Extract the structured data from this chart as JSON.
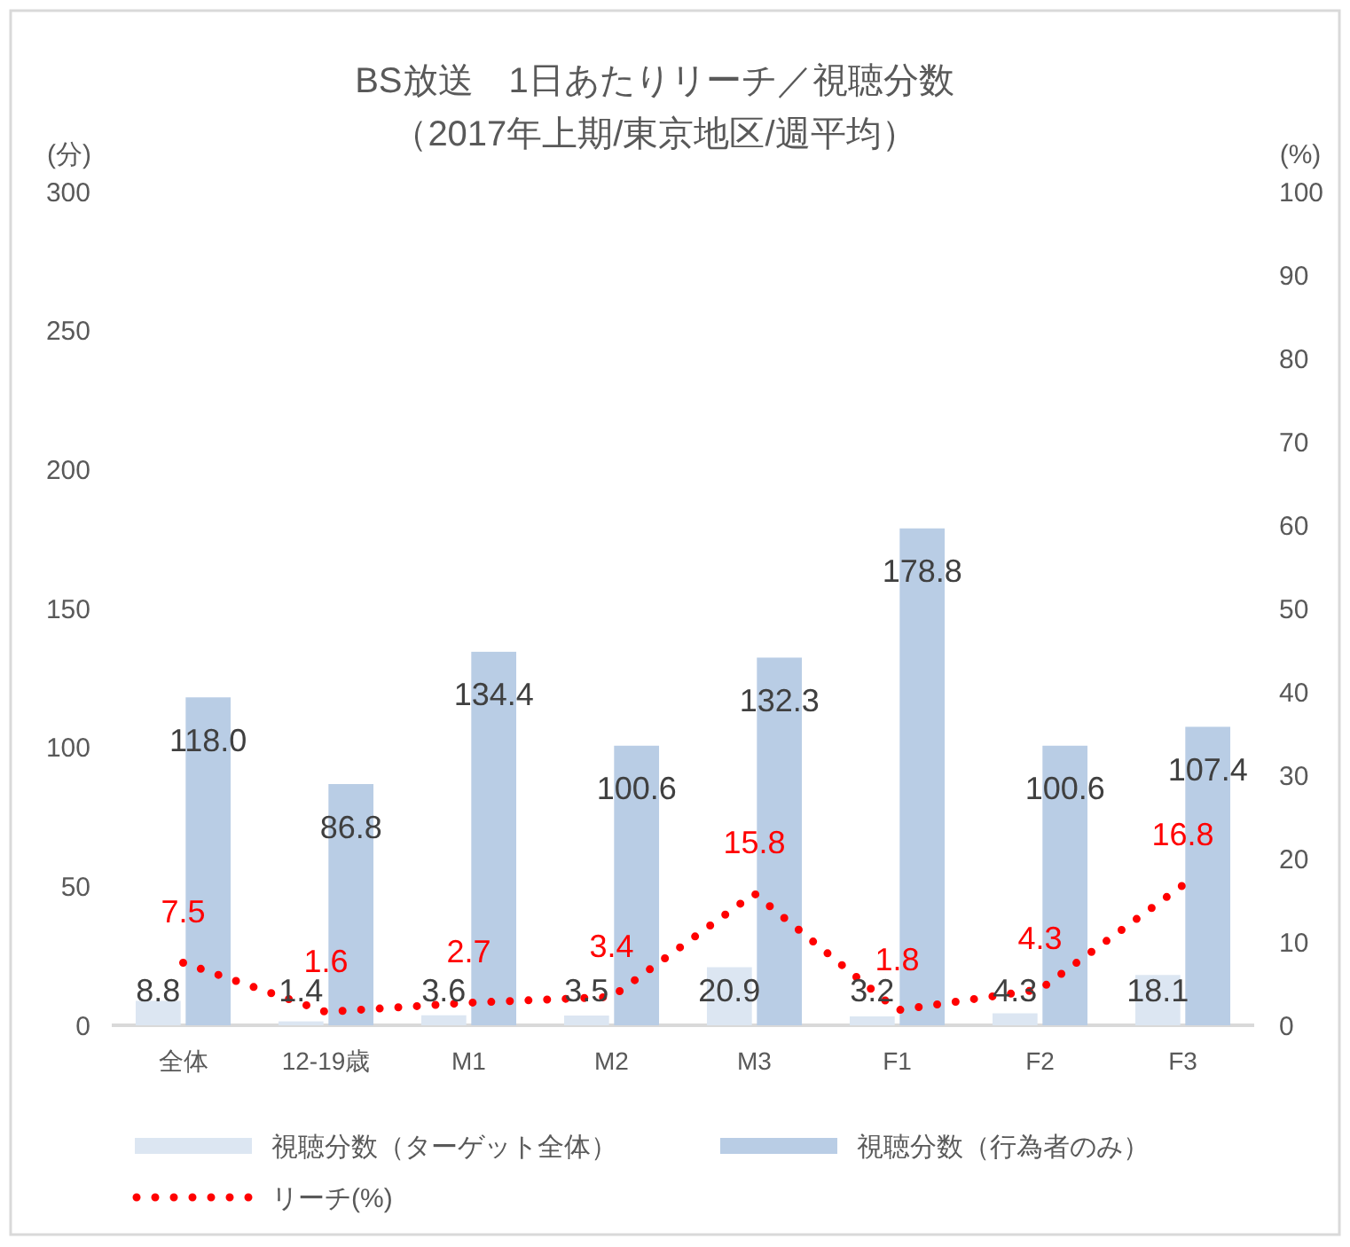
{
  "chart_data": {
    "type": "bar",
    "title": "BS放送　1日あたりリーチ／視聴分数",
    "subtitle": "（2017年上期/東京地区/週平均）",
    "ylabel": "(分)",
    "y2label": "(%)",
    "categories": [
      "全体",
      "12-19歳",
      "M1",
      "M2",
      "M3",
      "F1",
      "F2",
      "F3"
    ],
    "series": [
      {
        "name": "視聴分数（ターゲット全体）",
        "color": "#dce6f2",
        "values": [
          8.8,
          1.4,
          3.6,
          3.5,
          20.9,
          3.2,
          4.3,
          18.1
        ],
        "value_labels": [
          "8.8",
          "1.4",
          "3.6",
          "3.5",
          "20.9",
          "3.2",
          "4.3",
          "18.1"
        ]
      },
      {
        "name": "視聴分数（行為者のみ）",
        "color": "#b9cde5",
        "values": [
          118.0,
          86.8,
          134.4,
          100.6,
          132.3,
          178.8,
          100.6,
          107.4
        ],
        "value_labels": [
          "118.0",
          "86.8",
          "134.4",
          "100.6",
          "132.3",
          "178.8",
          "100.6",
          "107.4"
        ]
      },
      {
        "name": "リーチ(%)",
        "type": "line",
        "axis": "y2",
        "color": "#ff0000",
        "line_style": "dotted",
        "values": [
          7.5,
          1.6,
          2.7,
          3.4,
          15.8,
          1.8,
          4.3,
          16.8
        ],
        "value_labels": [
          "7.5",
          "1.6",
          "2.7",
          "3.4",
          "15.8",
          "1.8",
          "4.3",
          "16.8"
        ]
      }
    ],
    "ylim": [
      0,
      300
    ],
    "yticks": [
      0,
      50,
      100,
      150,
      200,
      250,
      300
    ],
    "y2lim": [
      0,
      100
    ],
    "y2ticks": [
      0,
      10,
      20,
      30,
      40,
      50,
      60,
      70,
      80,
      90,
      100
    ],
    "legend": "bottom"
  }
}
